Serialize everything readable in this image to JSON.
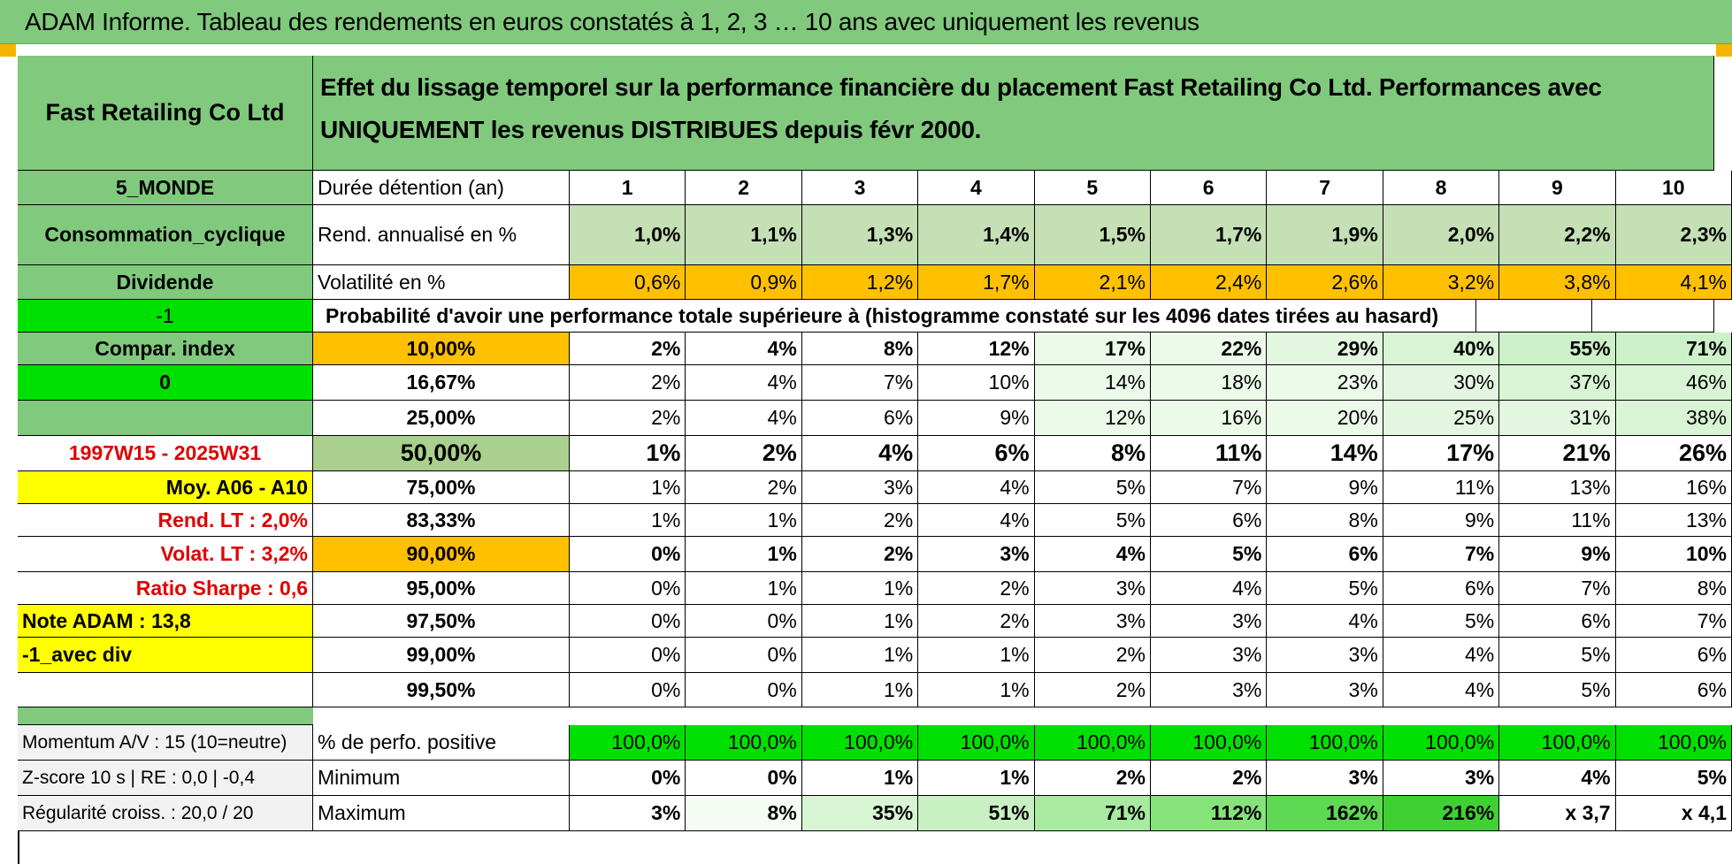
{
  "title": "ADAM Informe. Tableau des rendements en euros constatés à 1, 2, 3 … 10 ans avec uniquement les revenus",
  "header": {
    "company": "Fast Retailing Co Ltd",
    "description": "Effet du lissage temporel sur la performance financière du placement Fast Retailing Co Ltd. Performances avec UNIQUEMENT les revenus DISTRIBUES depuis févr 2000."
  },
  "left": {
    "zone": "5_MONDE",
    "sector": "Consommation_cyclique",
    "dividend": "Dividende",
    "val_minus1": "-1",
    "compar_index": "Compar. index",
    "val_0": "0",
    "period": "1997W15 - 2025W31",
    "moy": "Moy. A06 - A10",
    "rend_lt": "Rend. LT :    2,0%",
    "volat_lt": "Volat. LT :    3,2%",
    "sharpe": "Ratio Sharpe :    0,6",
    "note": "Note ADAM : 13,8",
    "avec_div": "-1_avec div",
    "momentum": "Momentum A/V : 15 (10=neutre)",
    "zscore": "Z-score 10 s | RE : 0,0 | -0,4",
    "regularite": "Régularité croiss. : 20,0 / 20"
  },
  "rows": {
    "duree_label": "Durée détention (an)",
    "years": [
      "1",
      "2",
      "3",
      "4",
      "5",
      "6",
      "7",
      "8",
      "9",
      "10"
    ],
    "rend_label": "Rend. annualisé en %",
    "rend": [
      "1,0%",
      "1,1%",
      "1,3%",
      "1,4%",
      "1,5%",
      "1,7%",
      "1,9%",
      "2,0%",
      "2,2%",
      "2,3%"
    ],
    "vol_label": "Volatilité en %",
    "vol": [
      "0,6%",
      "0,9%",
      "1,2%",
      "1,7%",
      "2,1%",
      "2,4%",
      "2,6%",
      "3,2%",
      "3,8%",
      "4,1%"
    ],
    "prob_label": "Probabilité d'avoir une performance totale supérieure à (histogramme constaté sur les 4096 dates tirées au hasard)",
    "pct_label": "% de perfo. positive",
    "pct": [
      "100,0%",
      "100,0%",
      "100,0%",
      "100,0%",
      "100,0%",
      "100,0%",
      "100,0%",
      "100,0%",
      "100,0%",
      "100,0%"
    ],
    "min_label": "Minimum",
    "min": [
      "0%",
      "0%",
      "1%",
      "1%",
      "2%",
      "2%",
      "3%",
      "3%",
      "4%",
      "5%"
    ],
    "max_label": "Maximum",
    "max": [
      "3%",
      "8%",
      "35%",
      "51%",
      "71%",
      "112%",
      "162%",
      "216%",
      "x 3,7",
      "x 4,1"
    ]
  },
  "probabilities": [
    {
      "level": "10,00%",
      "values": [
        "2%",
        "4%",
        "8%",
        "12%",
        "17%",
        "22%",
        "29%",
        "40%",
        "55%",
        "71%"
      ]
    },
    {
      "level": "16,67%",
      "values": [
        "2%",
        "4%",
        "7%",
        "10%",
        "14%",
        "18%",
        "23%",
        "30%",
        "37%",
        "46%"
      ]
    },
    {
      "level": "25,00%",
      "values": [
        "2%",
        "4%",
        "6%",
        "9%",
        "12%",
        "16%",
        "20%",
        "25%",
        "31%",
        "38%"
      ]
    },
    {
      "level": "50,00%",
      "values": [
        "1%",
        "2%",
        "4%",
        "6%",
        "8%",
        "11%",
        "14%",
        "17%",
        "21%",
        "26%"
      ]
    },
    {
      "level": "75,00%",
      "values": [
        "1%",
        "2%",
        "3%",
        "4%",
        "5%",
        "7%",
        "9%",
        "11%",
        "13%",
        "16%"
      ]
    },
    {
      "level": "83,33%",
      "values": [
        "1%",
        "1%",
        "2%",
        "4%",
        "5%",
        "6%",
        "8%",
        "9%",
        "11%",
        "13%"
      ]
    },
    {
      "level": "90,00%",
      "values": [
        "0%",
        "1%",
        "2%",
        "3%",
        "4%",
        "5%",
        "6%",
        "7%",
        "9%",
        "10%"
      ]
    },
    {
      "level": "95,00%",
      "values": [
        "0%",
        "1%",
        "1%",
        "2%",
        "3%",
        "4%",
        "5%",
        "6%",
        "7%",
        "8%"
      ]
    },
    {
      "level": "97,50%",
      "values": [
        "0%",
        "0%",
        "1%",
        "2%",
        "3%",
        "3%",
        "4%",
        "5%",
        "6%",
        "7%"
      ]
    },
    {
      "level": "99,00%",
      "values": [
        "0%",
        "0%",
        "1%",
        "1%",
        "2%",
        "3%",
        "3%",
        "4%",
        "5%",
        "6%"
      ]
    },
    {
      "level": "99,50%",
      "values": [
        "0%",
        "0%",
        "1%",
        "1%",
        "2%",
        "3%",
        "3%",
        "4%",
        "5%",
        "6%"
      ]
    }
  ],
  "colors": {
    "header_green": "#80c97d",
    "bright_green": "#00e000",
    "orange": "#ffc000",
    "yellow": "#ffff00",
    "red_text": "#e00000"
  }
}
